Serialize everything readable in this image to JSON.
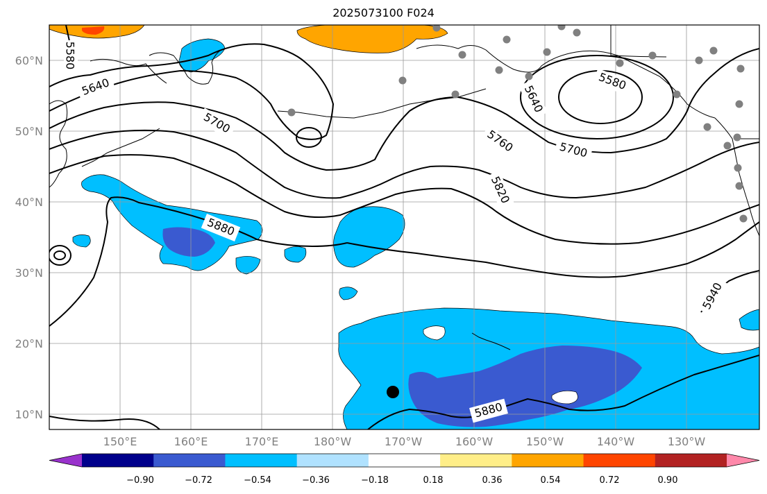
{
  "title": "2025073100 F024",
  "latitude_labels": [
    "60°N",
    "50°N",
    "40°N",
    "30°N",
    "20°N",
    "10°N"
  ],
  "longitude_labels": [
    "150°E",
    "160°E",
    "170°E",
    "180°W",
    "170°W",
    "160°W",
    "150°W",
    "140°W",
    "130°W"
  ],
  "contour_labels": [
    "5580",
    "5640",
    "5700",
    "5580",
    "5640",
    "5760",
    "5700",
    "5820",
    "5880",
    "5940",
    "5880"
  ],
  "colorbar": {
    "colors": [
      "#9932CC",
      "#00008B",
      "#3A5AD0",
      "#00BFFF",
      "#B0E2FF",
      "#FFFFFF",
      "#FFEE88",
      "#FFA500",
      "#FF4500",
      "#B22222",
      "#FF88AA"
    ],
    "tick_labels": [
      "−0.90",
      "−0.72",
      "−0.54",
      "−0.36",
      "−0.18",
      "0.18",
      "0.36",
      "0.54",
      "0.72",
      "0.90"
    ]
  },
  "colors": {
    "contour": "#000000",
    "grid": "#9a9a9a",
    "coast": "#000000",
    "station_marker": "#808080",
    "center_marker": "#000000"
  }
}
